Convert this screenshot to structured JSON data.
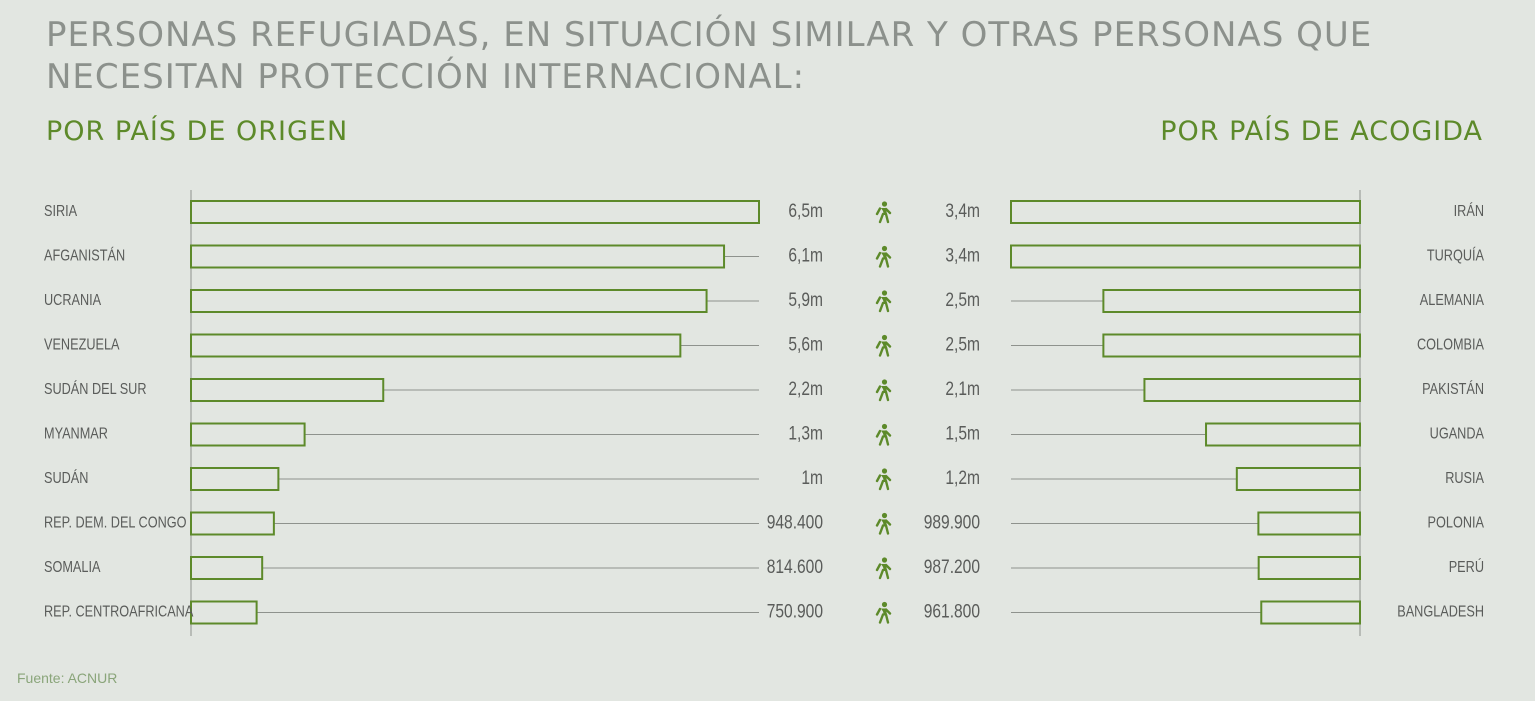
{
  "title": "PERSONAS REFUGIADAS, EN SITUACIÓN SIMILAR Y OTRAS PERSONAS QUE NECESITAN PROTECCIÓN INTERNACIONAL:",
  "subtitle_left": "POR PAÍS DE ORIGEN",
  "subtitle_right": "POR PAÍS DE ACOGIDA",
  "source": "Fuente: ACNUR",
  "colors": {
    "bar_stroke": "#5d8a2a",
    "track": "#8e928d",
    "label": "#5a5c5a",
    "icon": "#5d8a2a",
    "background": "#e2e6e1"
  },
  "icon": "walking-person-icon",
  "chart_data": [
    {
      "type": "bar",
      "title": "POR PAÍS DE ORIGEN",
      "orientation": "horizontal",
      "categories": [
        "SIRIA",
        "AFGANISTÁN",
        "UCRANIA",
        "VENEZUELA",
        "SUDÁN DEL SUR",
        "MYANMAR",
        "SUDÁN",
        "REP. DEM. DEL CONGO",
        "SOMALIA",
        "REP. CENTROAFRICANA"
      ],
      "values": [
        6500000,
        6100000,
        5900000,
        5600000,
        2200000,
        1300000,
        1000000,
        948400,
        814600,
        750900
      ],
      "value_labels": [
        "6,5m",
        "6,1m",
        "5,9m",
        "5,6m",
        "2,2m",
        "1,3m",
        "1m",
        "948.400",
        "814.600",
        "750.900"
      ]
    },
    {
      "type": "bar",
      "title": "POR PAÍS DE ACOGIDA",
      "orientation": "horizontal",
      "categories": [
        "IRÁN",
        "TURQUÍA",
        "ALEMANIA",
        "COLOMBIA",
        "PAKISTÁN",
        "UGANDA",
        "RUSIA",
        "POLONIA",
        "PERÚ",
        "BANGLADESH"
      ],
      "values": [
        3400000,
        3400000,
        2500000,
        2500000,
        2100000,
        1500000,
        1200000,
        989900,
        987200,
        961800
      ],
      "value_labels": [
        "3,4m",
        "3,4m",
        "2,5m",
        "2,5m",
        "2,1m",
        "1,5m",
        "1,2m",
        "989.900",
        "987.200",
        "961.800"
      ]
    }
  ]
}
